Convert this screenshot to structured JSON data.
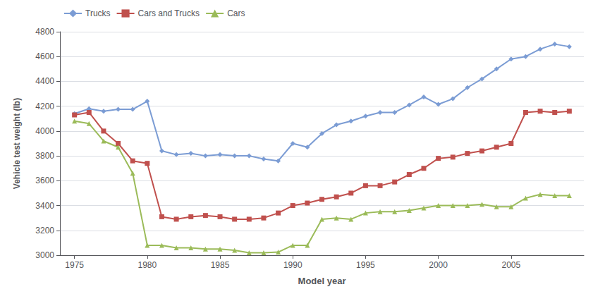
{
  "chart_data": {
    "type": "line",
    "xlabel": "Model year",
    "ylabel": "Vehicle test weight (lb)",
    "xlim": [
      1974,
      2010
    ],
    "ylim": [
      3000,
      4800
    ],
    "xticks": [
      1975,
      1980,
      1985,
      1990,
      1995,
      2000,
      2005
    ],
    "yticks": [
      3000,
      3200,
      3400,
      3600,
      3800,
      4000,
      4200,
      4400,
      4600,
      4800
    ],
    "grid": "y",
    "legend": "upper left",
    "x": [
      1975,
      1976,
      1977,
      1978,
      1979,
      1980,
      1981,
      1982,
      1983,
      1984,
      1985,
      1986,
      1987,
      1988,
      1989,
      1990,
      1991,
      1992,
      1993,
      1994,
      1995,
      1996,
      1997,
      1998,
      1999,
      2000,
      2001,
      2002,
      2003,
      2004,
      2005,
      2006,
      2007,
      2008,
      2009
    ],
    "series": [
      {
        "name": "Trucks",
        "color": "#7B9CD4",
        "marker": "diamond",
        "values": [
          4140,
          4180,
          4160,
          4175,
          4175,
          4240,
          3840,
          3810,
          3820,
          3800,
          3810,
          3800,
          3800,
          3775,
          3760,
          3900,
          3870,
          3980,
          4050,
          4080,
          4120,
          4150,
          4150,
          4210,
          4275,
          4215,
          4260,
          4350,
          4420,
          4500,
          4580,
          4600,
          4660,
          4700,
          4680
        ]
      },
      {
        "name": "Cars and Trucks",
        "color": "#C0504D",
        "marker": "square",
        "values": [
          4130,
          4150,
          4000,
          3900,
          3760,
          3740,
          3310,
          3290,
          3310,
          3320,
          3310,
          3290,
          3290,
          3300,
          3340,
          3400,
          3420,
          3450,
          3470,
          3500,
          3560,
          3560,
          3590,
          3650,
          3700,
          3780,
          3790,
          3820,
          3840,
          3870,
          3900,
          4150,
          4160,
          4150,
          4160
        ]
      },
      {
        "name": "Cars",
        "color": "#9BBB59",
        "marker": "triangle",
        "values": [
          4080,
          4060,
          3920,
          3870,
          3660,
          3080,
          3080,
          3060,
          3060,
          3050,
          3050,
          3040,
          3020,
          3020,
          3025,
          3080,
          3080,
          3290,
          3300,
          3290,
          3340,
          3350,
          3350,
          3360,
          3380,
          3400,
          3400,
          3400,
          3410,
          3390,
          3390,
          3460,
          3490,
          3480,
          3480
        ]
      }
    ]
  }
}
